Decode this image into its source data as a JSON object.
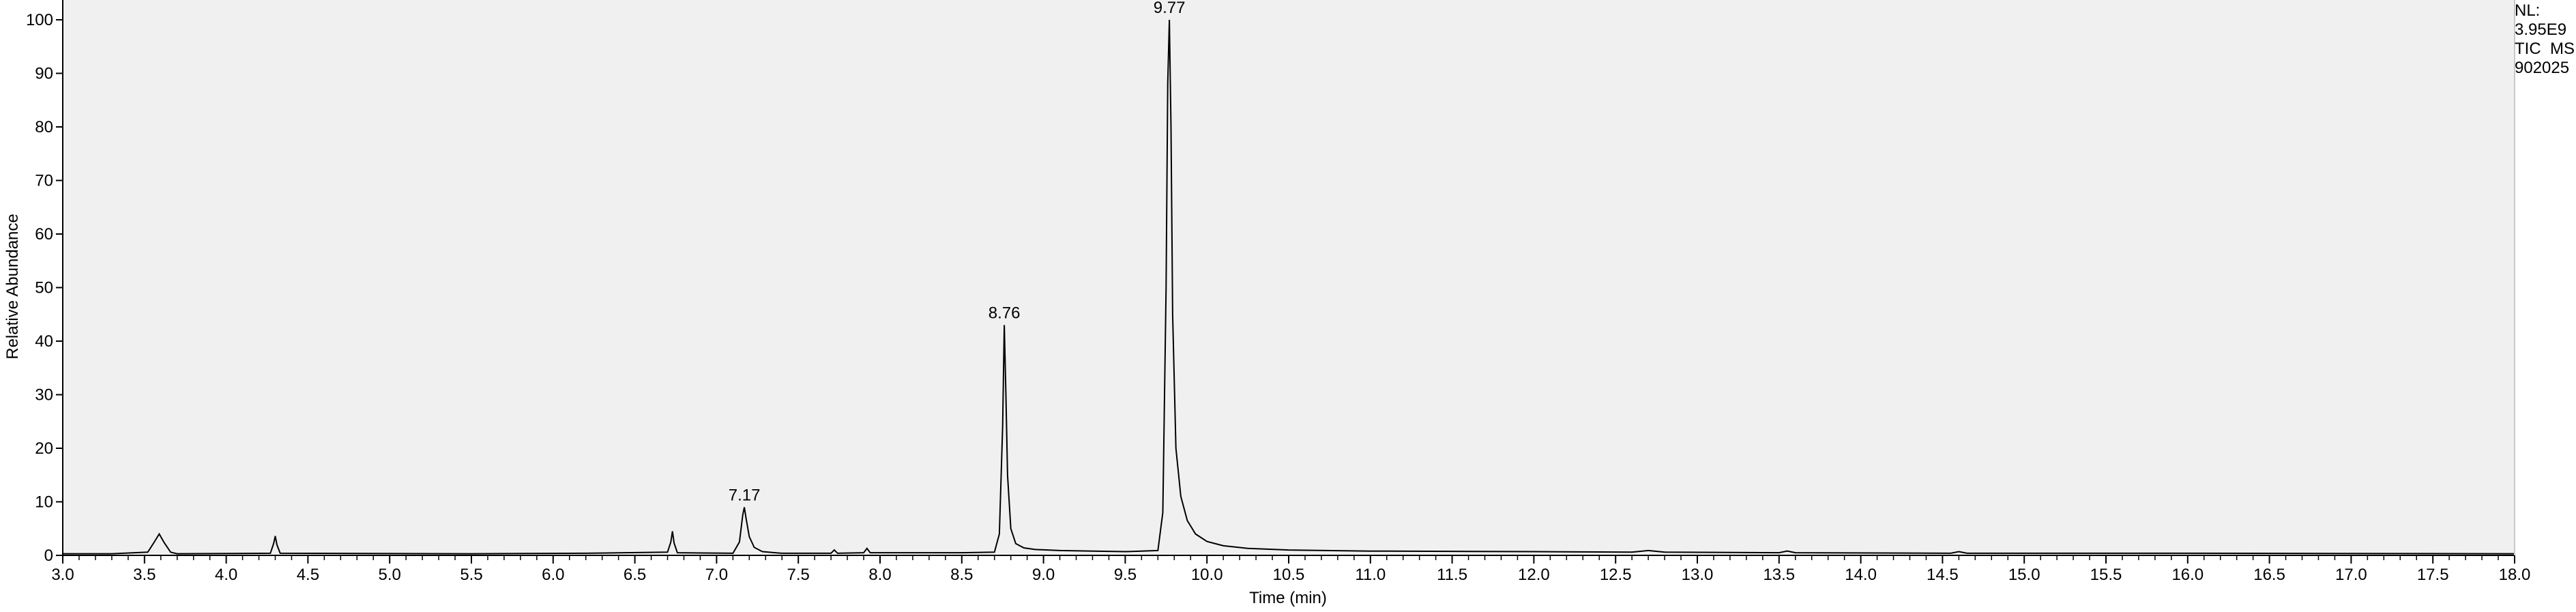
{
  "chart_data": {
    "type": "line",
    "xlabel": "Time (min)",
    "ylabel": "Relative Abundance",
    "xlim": [
      3.0,
      18.0
    ],
    "ylim": [
      0,
      100
    ],
    "x_ticks": [
      "3.0",
      "3.5",
      "4.0",
      "4.5",
      "5.0",
      "5.5",
      "6.0",
      "6.5",
      "7.0",
      "7.5",
      "8.0",
      "8.5",
      "9.0",
      "9.5",
      "10.0",
      "10.5",
      "11.0",
      "11.5",
      "12.0",
      "12.5",
      "13.0",
      "13.5",
      "14.0",
      "14.5",
      "15.0",
      "15.5",
      "16.0",
      "16.5",
      "17.0",
      "17.5",
      "18.0"
    ],
    "y_ticks": [
      "0",
      "10",
      "20",
      "30",
      "40",
      "50",
      "60",
      "70",
      "80",
      "90",
      "100"
    ],
    "grid": false,
    "peak_labels": [
      {
        "text": "7.17",
        "x": 7.17,
        "y": 9
      },
      {
        "text": "8.76",
        "x": 8.76,
        "y": 43
      },
      {
        "text": "9.77",
        "x": 9.77,
        "y": 100
      }
    ],
    "series": [
      {
        "x": [
          3.0,
          3.3,
          3.52,
          3.56,
          3.59,
          3.62,
          3.66,
          3.7,
          4.27,
          4.29,
          4.3,
          4.31,
          4.33,
          5.5,
          6.2,
          6.7,
          6.72,
          6.73,
          6.74,
          6.76,
          7.1,
          7.14,
          7.16,
          7.17,
          7.18,
          7.2,
          7.23,
          7.28,
          7.4,
          7.7,
          7.72,
          7.74,
          7.9,
          7.92,
          7.94,
          8.5,
          8.7,
          8.73,
          8.75,
          8.76,
          8.77,
          8.78,
          8.8,
          8.83,
          8.88,
          8.95,
          9.1,
          9.3,
          9.5,
          9.6,
          9.7,
          9.73,
          9.75,
          9.76,
          9.77,
          9.78,
          9.79,
          9.81,
          9.84,
          9.88,
          9.93,
          10.0,
          10.1,
          10.25,
          10.5,
          11.0,
          12.0,
          12.6,
          12.7,
          12.8,
          13.5,
          13.55,
          13.6,
          14.55,
          14.6,
          14.65,
          16.0,
          18.0
        ],
        "y": [
          0.3,
          0.3,
          0.6,
          2.5,
          4.0,
          2.4,
          0.6,
          0.3,
          0.4,
          2.2,
          3.6,
          2.0,
          0.4,
          0.3,
          0.4,
          0.6,
          2.5,
          4.5,
          2.3,
          0.5,
          0.4,
          2.5,
          7.5,
          9.0,
          7.0,
          3.5,
          1.5,
          0.7,
          0.4,
          0.4,
          1.0,
          0.4,
          0.5,
          1.3,
          0.5,
          0.5,
          0.6,
          4.0,
          24.0,
          43.0,
          30.0,
          15.0,
          5.0,
          2.2,
          1.4,
          1.1,
          0.9,
          0.8,
          0.7,
          0.8,
          0.9,
          8.0,
          50.0,
          88.0,
          100.0,
          80.0,
          45.0,
          20.0,
          11.0,
          6.5,
          4.0,
          2.6,
          1.8,
          1.3,
          1.0,
          0.8,
          0.7,
          0.6,
          0.9,
          0.6,
          0.5,
          0.8,
          0.5,
          0.4,
          0.7,
          0.4,
          0.4,
          0.3
        ]
      }
    ]
  },
  "info": {
    "nl_label": "NL:",
    "nl_value": "3.95E9",
    "scan_filter": "TIC  MS",
    "sample_id": "902025"
  }
}
